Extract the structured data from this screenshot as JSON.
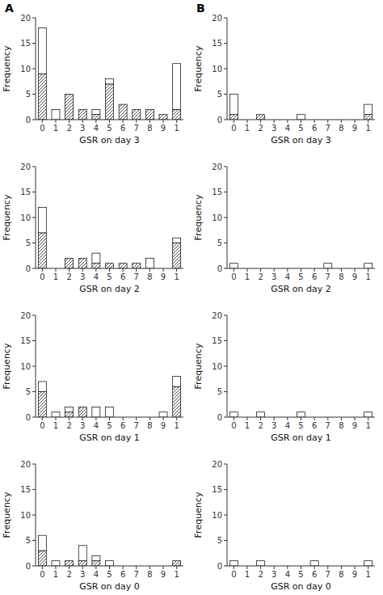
{
  "chart_data": [
    {
      "type": "bar",
      "stacked": true,
      "grid": false,
      "categories": [
        "0",
        "1",
        "2",
        "3",
        "4",
        "5",
        "6",
        "7",
        "8",
        "9",
        "1"
      ],
      "series": [
        {
          "color": "#ffffff",
          "values": [
            9,
            0,
            5,
            2,
            1,
            7,
            3,
            2,
            2,
            1,
            2
          ]
        },
        {
          "color": "#ffffff",
          "values": [
            9,
            2,
            0,
            0,
            1,
            1,
            0,
            0,
            0,
            0,
            9
          ]
        }
      ],
      "ylim": [
        0,
        20
      ],
      "yticks": [
        0,
        5,
        10,
        15,
        20
      ],
      "x_label": "GSR on day 3",
      "y_label": "Frequency",
      "annotations": [
        "A"
      ]
    },
    {
      "type": "bar",
      "stacked": true,
      "grid": false,
      "categories": [
        "0",
        "1",
        "2",
        "3",
        "4",
        "5",
        "6",
        "7",
        "8",
        "9",
        "1"
      ],
      "series": [
        {
          "color": "#ffffff",
          "values": [
            7,
            0,
            2,
            2,
            1,
            1,
            1,
            1,
            0,
            0,
            5
          ]
        },
        {
          "color": "#ffffff",
          "values": [
            5,
            0,
            0,
            0,
            2,
            0,
            0,
            0,
            2,
            0,
            1
          ]
        }
      ],
      "ylim": [
        0,
        20
      ],
      "yticks": [
        0,
        5,
        10,
        15,
        20
      ],
      "x_label": "GSR on day 2",
      "y_label": "Frequency"
    },
    {
      "type": "bar",
      "stacked": true,
      "grid": false,
      "categories": [
        "0",
        "1",
        "2",
        "3",
        "4",
        "5",
        "6",
        "7",
        "8",
        "9",
        "1"
      ],
      "series": [
        {
          "color": "#ffffff",
          "values": [
            5,
            0,
            1,
            2,
            0,
            0,
            0,
            0,
            0,
            0,
            6
          ]
        },
        {
          "color": "#ffffff",
          "values": [
            2,
            1,
            1,
            0,
            2,
            2,
            0,
            0,
            0,
            1,
            2
          ]
        }
      ],
      "ylim": [
        0,
        20
      ],
      "yticks": [
        0,
        5,
        10,
        15,
        20
      ],
      "x_label": "GSR on day 1",
      "y_label": "Frequency"
    },
    {
      "type": "bar",
      "stacked": true,
      "grid": false,
      "categories": [
        "0",
        "1",
        "2",
        "3",
        "4",
        "5",
        "6",
        "7",
        "8",
        "9",
        "1"
      ],
      "series": [
        {
          "color": "#ffffff",
          "values": [
            3,
            0,
            1,
            1,
            1,
            0,
            0,
            0,
            0,
            0,
            1
          ]
        },
        {
          "color": "#ffffff",
          "values": [
            3,
            1,
            0,
            3,
            1,
            1,
            0,
            0,
            0,
            0,
            0
          ]
        }
      ],
      "ylim": [
        0,
        20
      ],
      "yticks": [
        0,
        5,
        10,
        15,
        20
      ],
      "x_label": "GSR on day 0",
      "y_label": "Frequency"
    },
    {
      "type": "bar",
      "stacked": true,
      "grid": false,
      "categories": [
        "0",
        "1",
        "2",
        "3",
        "4",
        "5",
        "6",
        "7",
        "8",
        "9",
        "1"
      ],
      "series": [
        {
          "color": "#ffffff",
          "values": [
            1,
            0,
            1,
            0,
            0,
            0,
            0,
            0,
            0,
            0,
            1
          ]
        },
        {
          "color": "#ffffff",
          "values": [
            4,
            0,
            0,
            0,
            0,
            1,
            0,
            0,
            0,
            0,
            2
          ]
        }
      ],
      "ylim": [
        0,
        20
      ],
      "yticks": [
        0,
        5,
        10,
        15,
        20
      ],
      "x_label": "GSR on day 3",
      "y_label": "Frequency",
      "annotations": [
        "B"
      ]
    },
    {
      "type": "bar",
      "stacked": true,
      "grid": false,
      "categories": [
        "0",
        "1",
        "2",
        "3",
        "4",
        "5",
        "6",
        "7",
        "8",
        "9",
        "1"
      ],
      "series": [
        {
          "color": "#ffffff",
          "values": [
            0,
            0,
            0,
            0,
            0,
            0,
            0,
            0,
            0,
            0,
            0
          ]
        },
        {
          "color": "#ffffff",
          "values": [
            1,
            0,
            0,
            0,
            0,
            0,
            0,
            1,
            0,
            0,
            1
          ]
        }
      ],
      "ylim": [
        0,
        20
      ],
      "yticks": [
        0,
        5,
        10,
        15,
        20
      ],
      "x_label": "GSR on day 2",
      "y_label": "Frequency"
    },
    {
      "type": "bar",
      "stacked": true,
      "grid": false,
      "categories": [
        "0",
        "1",
        "2",
        "3",
        "4",
        "5",
        "6",
        "7",
        "8",
        "9",
        "1"
      ],
      "series": [
        {
          "color": "#ffffff",
          "values": [
            0,
            0,
            0,
            0,
            0,
            0,
            0,
            0,
            0,
            0,
            0
          ]
        },
        {
          "color": "#ffffff",
          "values": [
            1,
            0,
            1,
            0,
            0,
            1,
            0,
            0,
            0,
            0,
            1
          ]
        }
      ],
      "ylim": [
        0,
        20
      ],
      "yticks": [
        0,
        5,
        10,
        15,
        20
      ],
      "x_label": "GSR on day 1",
      "y_label": "Frequency"
    },
    {
      "type": "bar",
      "stacked": true,
      "grid": false,
      "categories": [
        "0",
        "1",
        "2",
        "3",
        "4",
        "5",
        "6",
        "7",
        "8",
        "9",
        "1"
      ],
      "series": [
        {
          "color": "#ffffff",
          "values": [
            0,
            0,
            0,
            0,
            0,
            0,
            0,
            0,
            0,
            0,
            0
          ]
        },
        {
          "color": "#ffffff",
          "values": [
            1,
            0,
            1,
            0,
            0,
            0,
            1,
            0,
            0,
            0,
            1
          ]
        }
      ],
      "ylim": [
        0,
        20
      ],
      "yticks": [
        0,
        5,
        10,
        15,
        20
      ],
      "x_label": "GSR on day 0",
      "y_label": "Frequency"
    }
  ]
}
